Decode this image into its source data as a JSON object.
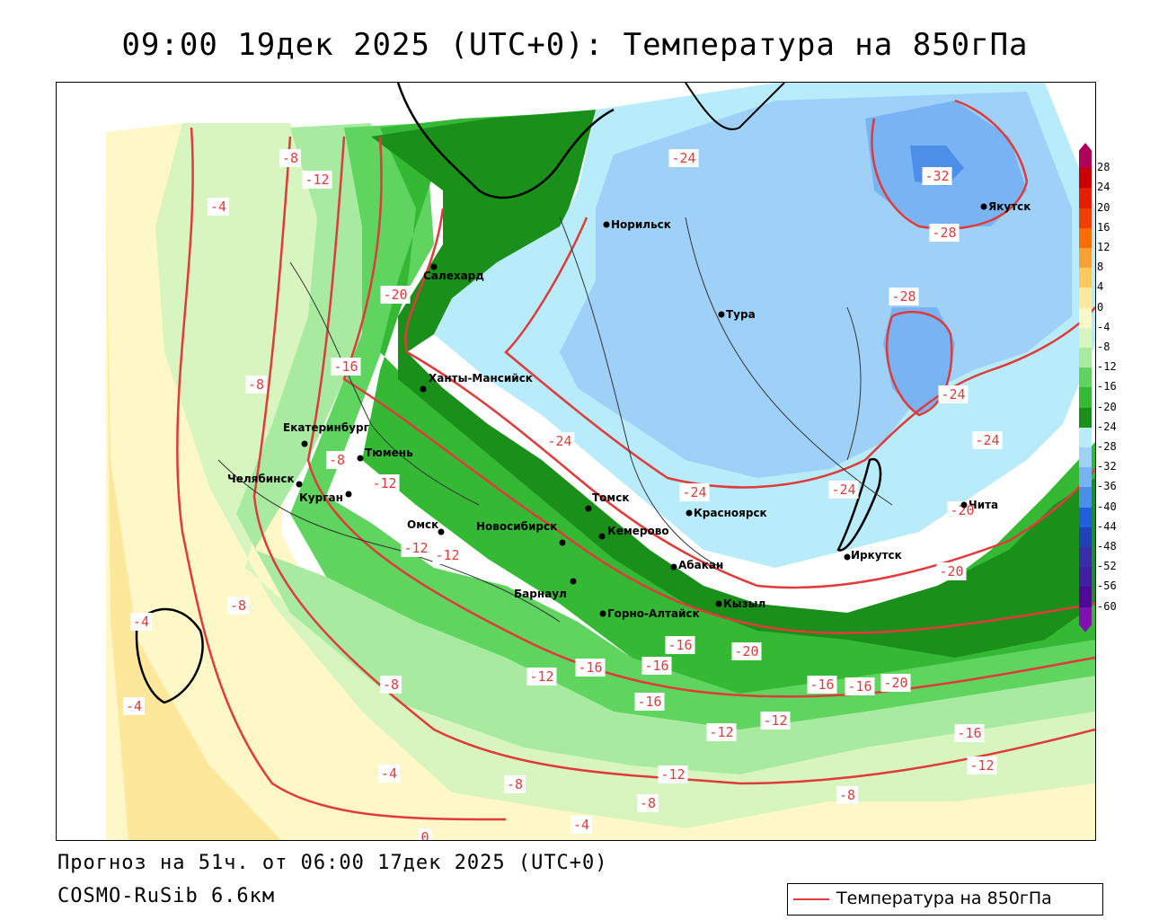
{
  "header": {
    "title": "09:00 19дек 2025 (UTC+0): Температура на 850гПа"
  },
  "footer": {
    "forecast": "Прогноз на 51ч. от 06:00 17дек 2025 (UTC+0)",
    "model": "COSMO-RuSib 6.6км",
    "legend_label": "Температура на 850гПа",
    "legend_line_color": "#e03a3a"
  },
  "colorbar": {
    "ticks": [
      "28",
      "24",
      "20",
      "16",
      "12",
      "8",
      "4",
      "0",
      "-4",
      "-8",
      "-12",
      "-16",
      "-20",
      "-24",
      "-28",
      "-32",
      "-36",
      "-40",
      "-44",
      "-48",
      "-52",
      "-56",
      "-60"
    ],
    "colors": [
      "#b0005a",
      "#c80000",
      "#e02000",
      "#f04000",
      "#f86c00",
      "#f8a030",
      "#fcc860",
      "#fde79a",
      "#fef7c8",
      "#d8f5c0",
      "#a8eba0",
      "#5fd45f",
      "#35b935",
      "#1a8f1a",
      "#b8ecfa",
      "#9fd0f8",
      "#78b4f4",
      "#4c8fe8",
      "#2060d8",
      "#2040b8",
      "#3a2ea8",
      "#4020a0",
      "#500898",
      "#8010b0"
    ]
  },
  "cities": [
    {
      "name": "Салехард"
    },
    {
      "name": "Норильск"
    },
    {
      "name": "Тура"
    },
    {
      "name": "Якутск"
    },
    {
      "name": "Ханты-Мансийск"
    },
    {
      "name": "Екатеринбург"
    },
    {
      "name": "Тюмень"
    },
    {
      "name": "Челябинск"
    },
    {
      "name": "Курган"
    },
    {
      "name": "Омск"
    },
    {
      "name": "Новосибирск"
    },
    {
      "name": "Томск"
    },
    {
      "name": "Кемерово"
    },
    {
      "name": "Красноярск"
    },
    {
      "name": "Барнаул"
    },
    {
      "name": "Абакан"
    },
    {
      "name": "Горно-Алтайск"
    },
    {
      "name": "Кызыл"
    },
    {
      "name": "Иркутск"
    },
    {
      "name": "Чита"
    }
  ],
  "contour_labels": [
    "-4",
    "-8",
    "-12",
    "-16",
    "-20",
    "-24",
    "-28",
    "-32",
    "0"
  ]
}
